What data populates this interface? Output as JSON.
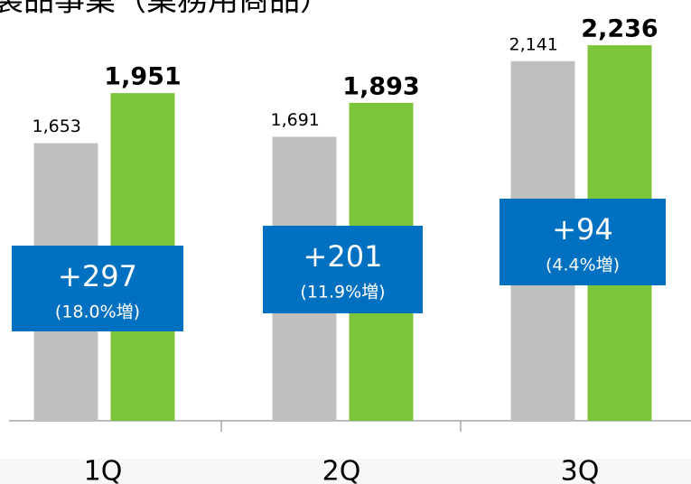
{
  "chart_data": {
    "type": "bar",
    "title": "製品事業（業務用商品）",
    "categories": [
      "1Q",
      "2Q",
      "3Q"
    ],
    "series": [
      {
        "color": "#bfbfbf",
        "values": [
          1653,
          1691,
          2141
        ],
        "value_labels": [
          "1,653",
          "1,691",
          "2,141"
        ]
      },
      {
        "color": "#7dc63c",
        "values": [
          1951,
          1893,
          2236
        ],
        "value_labels": [
          "1,951",
          "1,893",
          "2,236"
        ]
      }
    ],
    "annotations": [
      {
        "text": "+297",
        "note": "(18.0%増)"
      },
      {
        "text": "+201",
        "note": "(11.9%増)"
      },
      {
        "text": "+94",
        "note": "(4.4%増)"
      }
    ]
  }
}
